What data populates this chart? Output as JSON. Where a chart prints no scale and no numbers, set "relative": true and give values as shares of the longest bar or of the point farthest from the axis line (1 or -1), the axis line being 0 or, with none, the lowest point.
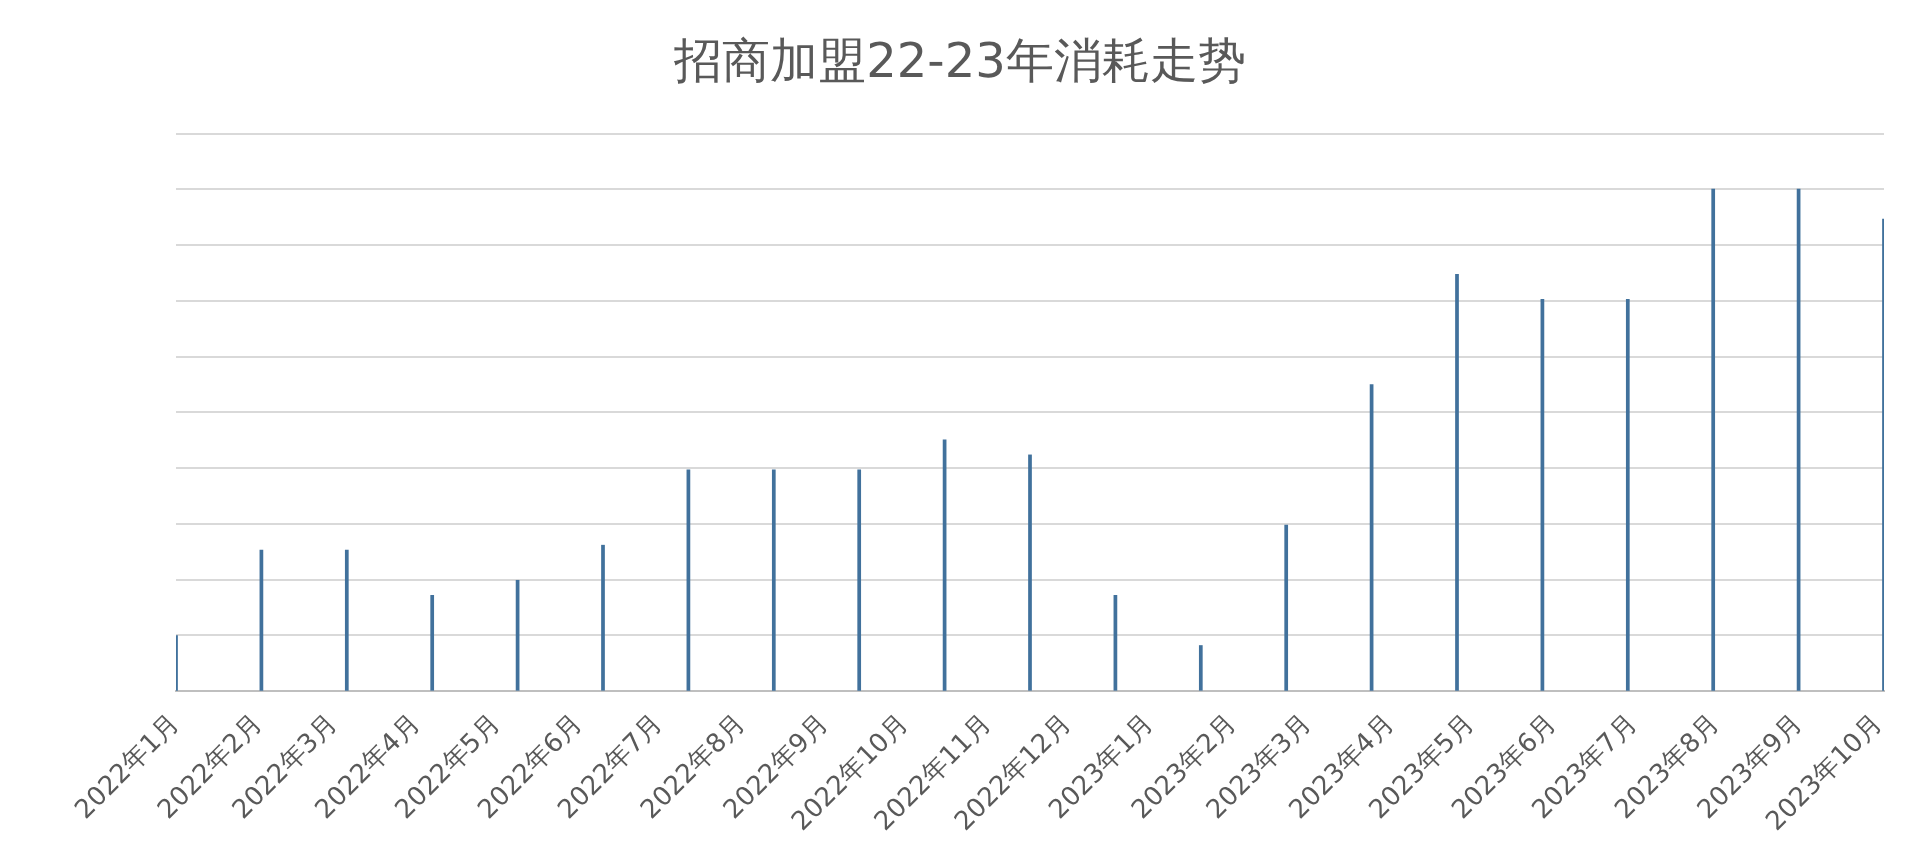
{
  "chart_data": {
    "type": "bar",
    "title": "招商加盟22-23年消耗走势",
    "relative": true,
    "grid": "y",
    "x": [
      "2022-01-01",
      "2022-02-02",
      "2022-03-06",
      "2022-04-07",
      "2022-05-09",
      "2022-06-10",
      "2022-07-12",
      "2022-08-13",
      "2022-09-14",
      "2022-10-16",
      "2022-11-17",
      "2022-12-19",
      "2023-01-20",
      "2023-02-21",
      "2023-03-25",
      "2023-04-26",
      "2023-05-28",
      "2023-06-29",
      "2023-07-31",
      "2023-09-01",
      "2023-10-03"
    ],
    "values": [
      0.11,
      0.28,
      0.28,
      0.19,
      0.22,
      0.29,
      0.44,
      0.44,
      0.44,
      0.5,
      0.47,
      0.19,
      0.09,
      0.33,
      0.61,
      0.83,
      0.78,
      0.78,
      1,
      1,
      0.94
    ],
    "color": "#41719c",
    "xlim": [
      "2022-01-01",
      "2023-10-03"
    ],
    "xticks": [
      {
        "value": "2022-01-01",
        "label": "2022年1月"
      },
      {
        "value": "2022-02-01",
        "label": "2022年2月"
      },
      {
        "value": "2022-03-01",
        "label": "2022年3月"
      },
      {
        "value": "2022-04-01",
        "label": "2022年4月"
      },
      {
        "value": "2022-05-01",
        "label": "2022年5月"
      },
      {
        "value": "2022-06-01",
        "label": "2022年6月"
      },
      {
        "value": "2022-07-01",
        "label": "2022年7月"
      },
      {
        "value": "2022-08-01",
        "label": "2022年8月"
      },
      {
        "value": "2022-09-01",
        "label": "2022年9月"
      },
      {
        "value": "2022-10-01",
        "label": "2022年10月"
      },
      {
        "value": "2022-11-01",
        "label": "2022年11月"
      },
      {
        "value": "2022-12-01",
        "label": "2022年12月"
      },
      {
        "value": "2023-01-01",
        "label": "2023年1月"
      },
      {
        "value": "2023-02-01",
        "label": "2023年2月"
      },
      {
        "value": "2023-03-01",
        "label": "2023年3月"
      },
      {
        "value": "2023-04-01",
        "label": "2023年4月"
      },
      {
        "value": "2023-05-01",
        "label": "2023年5月"
      },
      {
        "value": "2023-06-01",
        "label": "2023年6月"
      },
      {
        "value": "2023-07-01",
        "label": "2023年7月"
      },
      {
        "value": "2023-08-01",
        "label": "2023年8月"
      },
      {
        "value": "2023-09-01",
        "label": "2023年9月"
      },
      {
        "value": "2023-10-01",
        "label": "2023年10月"
      }
    ]
  }
}
